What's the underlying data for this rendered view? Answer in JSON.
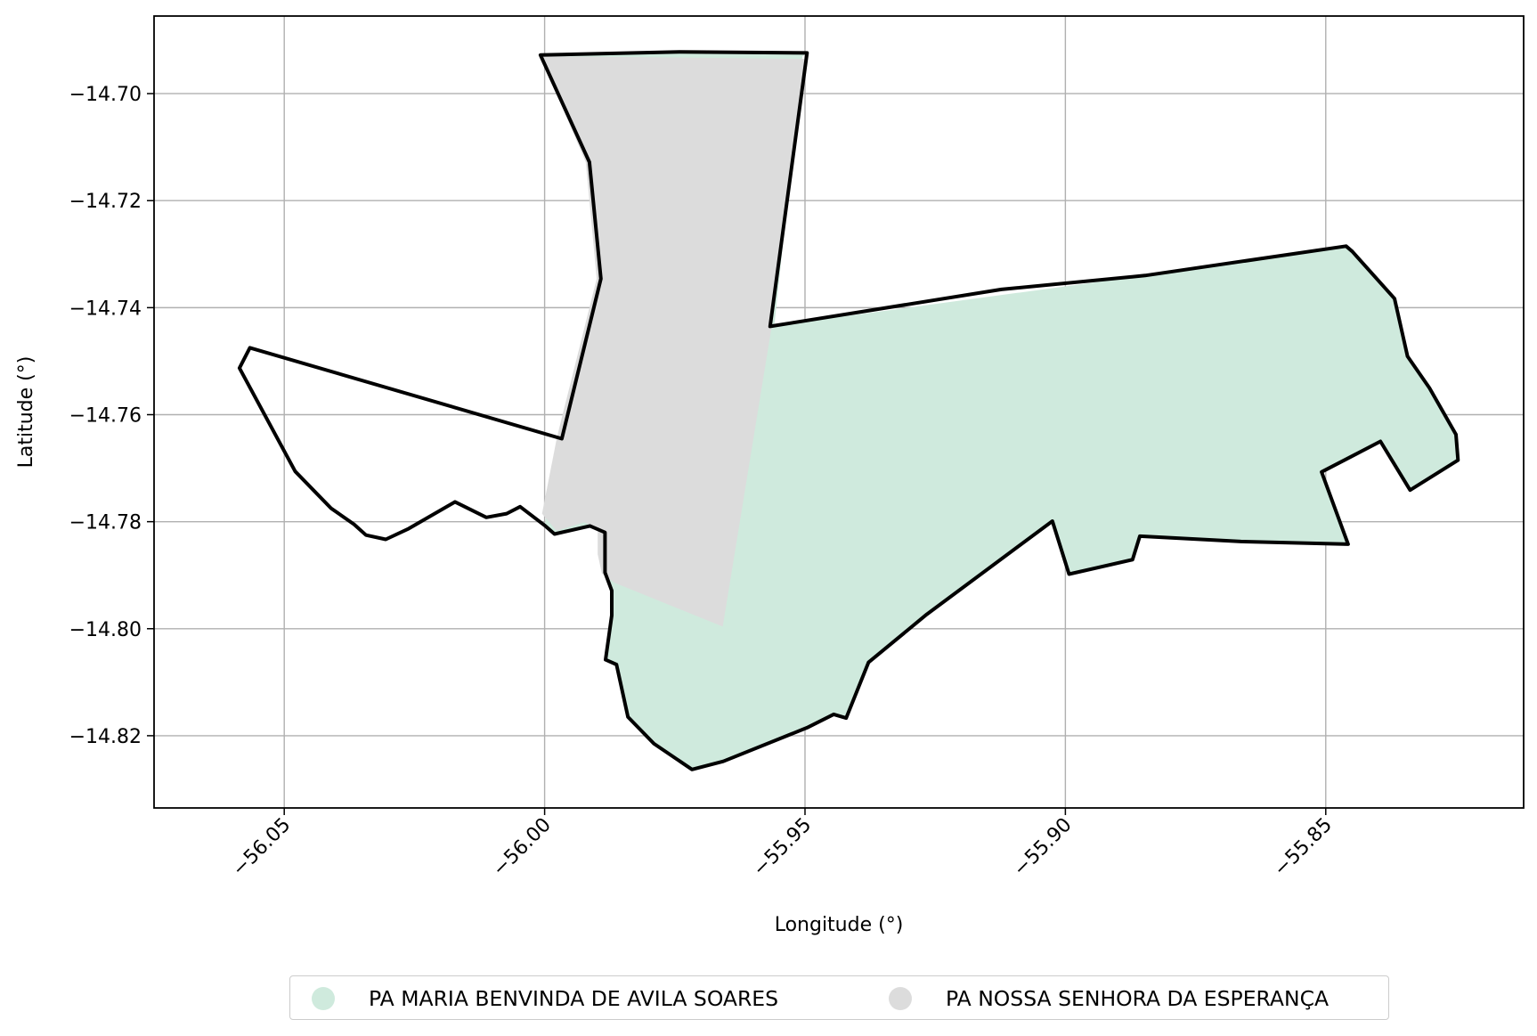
{
  "chart_data": {
    "type": "map",
    "xlabel": "Longitude (°)",
    "ylabel": "Latitude (°)",
    "xlim": [
      -56.075,
      -55.812
    ],
    "ylim": [
      -14.8335,
      -14.6855
    ],
    "xticks": [
      -56.05,
      -56.0,
      -55.95,
      -55.9,
      -55.85
    ],
    "xtick_labels": [
      "−56.05",
      "−56.00",
      "−55.95",
      "−55.90",
      "−55.85"
    ],
    "yticks": [
      -14.7,
      -14.72,
      -14.74,
      -14.76,
      -14.78,
      -14.8,
      -14.82
    ],
    "ytick_labels": [
      "−14.70",
      "−14.72",
      "−14.74",
      "−14.76",
      "−14.78",
      "−14.80",
      "−14.82"
    ],
    "grid": true,
    "legend_position": "bottom-center",
    "series": [
      {
        "name": "PA MARIA BENVINDA DE AVILA SOARES",
        "color": "#cfeadd",
        "polygon": [
          [
            -56.0,
            -14.6925
          ],
          [
            -55.9741,
            -14.692
          ],
          [
            -55.9496,
            -14.6925
          ],
          [
            -55.9505,
            -14.693
          ],
          [
            -55.9523,
            -14.7105
          ],
          [
            -55.9559,
            -14.7434
          ],
          [
            -55.8847,
            -14.734
          ],
          [
            -55.8461,
            -14.7285
          ],
          [
            -55.8449,
            -14.7295
          ],
          [
            -55.8368,
            -14.7383
          ],
          [
            -55.8343,
            -14.7491
          ],
          [
            -55.8301,
            -14.755
          ],
          [
            -55.825,
            -14.7637
          ],
          [
            -55.8246,
            -14.7685
          ],
          [
            -55.8338,
            -14.7741
          ],
          [
            -55.8395,
            -14.765
          ],
          [
            -55.8508,
            -14.7707
          ],
          [
            -55.8457,
            -14.7842
          ],
          [
            -55.8663,
            -14.7837
          ],
          [
            -55.8857,
            -14.7827
          ],
          [
            -55.8871,
            -14.7871
          ],
          [
            -55.8993,
            -14.7898
          ],
          [
            -55.9025,
            -14.7799
          ],
          [
            -55.9266,
            -14.7973
          ],
          [
            -55.9378,
            -14.8063
          ],
          [
            -55.9421,
            -14.8167
          ],
          [
            -55.9445,
            -14.816
          ],
          [
            -55.9496,
            -14.8185
          ],
          [
            -55.9657,
            -14.8248
          ],
          [
            -55.9717,
            -14.8263
          ],
          [
            -55.979,
            -14.8215
          ],
          [
            -55.984,
            -14.8165
          ],
          [
            -55.9862,
            -14.8067
          ],
          [
            -55.9883,
            -14.8058
          ],
          [
            -55.9871,
            -14.7975
          ],
          [
            -55.9871,
            -14.7929
          ],
          [
            -55.9884,
            -14.7895
          ],
          [
            -55.9884,
            -14.782
          ],
          [
            -55.9913,
            -14.7808
          ],
          [
            -55.9981,
            -14.7823
          ],
          [
            -56.0,
            -14.7807
          ],
          [
            -55.997,
            -14.764
          ],
          [
            -55.9893,
            -14.7345
          ],
          [
            -55.9916,
            -14.7128
          ]
        ]
      },
      {
        "name": "PA NOSSA SENHORA DA ESPERANÇA",
        "color": "#dcdcdc",
        "polygon": [
          [
            -56.0008,
            -14.693
          ],
          [
            -55.9498,
            -14.6935
          ],
          [
            -55.9564,
            -14.7435
          ],
          [
            -55.9658,
            -14.7996
          ],
          [
            -55.9866,
            -14.7914
          ],
          [
            -55.989,
            -14.7897
          ],
          [
            -55.9898,
            -14.7861
          ],
          [
            -55.9898,
            -14.7814
          ],
          [
            -55.9924,
            -14.7801
          ],
          [
            -55.9977,
            -14.7817
          ],
          [
            -56.0005,
            -14.7785
          ],
          [
            -55.9976,
            -14.7641
          ],
          [
            -55.99,
            -14.7346
          ],
          [
            -55.9921,
            -14.7128
          ]
        ]
      },
      {
        "name": "",
        "color": "#000000",
        "polygon": [
          [
            -56.0008,
            -14.6928
          ],
          [
            -55.9741,
            -14.6922
          ],
          [
            -55.9496,
            -14.6924
          ],
          [
            -55.9567,
            -14.7435
          ],
          [
            -55.9123,
            -14.7366
          ],
          [
            -55.8847,
            -14.734
          ],
          [
            -55.8461,
            -14.7285
          ],
          [
            -55.8449,
            -14.7295
          ],
          [
            -55.8368,
            -14.7383
          ],
          [
            -55.8343,
            -14.7491
          ],
          [
            -55.8301,
            -14.755
          ],
          [
            -55.825,
            -14.7637
          ],
          [
            -55.8246,
            -14.7685
          ],
          [
            -55.8338,
            -14.7741
          ],
          [
            -55.8395,
            -14.765
          ],
          [
            -55.8508,
            -14.7707
          ],
          [
            -55.8457,
            -14.7842
          ],
          [
            -55.8663,
            -14.7837
          ],
          [
            -55.8857,
            -14.7827
          ],
          [
            -55.8871,
            -14.7871
          ],
          [
            -55.8993,
            -14.7898
          ],
          [
            -55.9025,
            -14.7799
          ],
          [
            -55.9266,
            -14.7973
          ],
          [
            -55.9378,
            -14.8063
          ],
          [
            -55.9421,
            -14.8167
          ],
          [
            -55.9445,
            -14.816
          ],
          [
            -55.9496,
            -14.8185
          ],
          [
            -55.9657,
            -14.8248
          ],
          [
            -55.9717,
            -14.8263
          ],
          [
            -55.979,
            -14.8215
          ],
          [
            -55.984,
            -14.8165
          ],
          [
            -55.9862,
            -14.8067
          ],
          [
            -55.9883,
            -14.8058
          ],
          [
            -55.9871,
            -14.7975
          ],
          [
            -55.9871,
            -14.7929
          ],
          [
            -55.9884,
            -14.7895
          ],
          [
            -55.9884,
            -14.782
          ],
          [
            -55.9913,
            -14.7808
          ],
          [
            -55.9981,
            -14.7823
          ],
          [
            -56.0,
            -14.7807
          ],
          [
            -56.0047,
            -14.7772
          ],
          [
            -56.0073,
            -14.7785
          ],
          [
            -56.0112,
            -14.7792
          ],
          [
            -56.0172,
            -14.7763
          ],
          [
            -56.0261,
            -14.7813
          ],
          [
            -56.0305,
            -14.7833
          ],
          [
            -56.0343,
            -14.7825
          ],
          [
            -56.0366,
            -14.7805
          ],
          [
            -56.041,
            -14.7775
          ],
          [
            -56.0479,
            -14.7706
          ],
          [
            -56.0586,
            -14.7513
          ],
          [
            -56.0566,
            -14.7475
          ],
          [
            -55.9967,
            -14.7645
          ],
          [
            -55.9892,
            -14.7346
          ],
          [
            -55.9914,
            -14.7128
          ]
        ]
      }
    ]
  },
  "legend": {
    "items": [
      {
        "label": "PA MARIA BENVINDA DE AVILA SOARES",
        "color": "#cfeadd"
      },
      {
        "label": "PA NOSSA SENHORA DA ESPERANÇA",
        "color": "#dcdcdc"
      }
    ]
  }
}
